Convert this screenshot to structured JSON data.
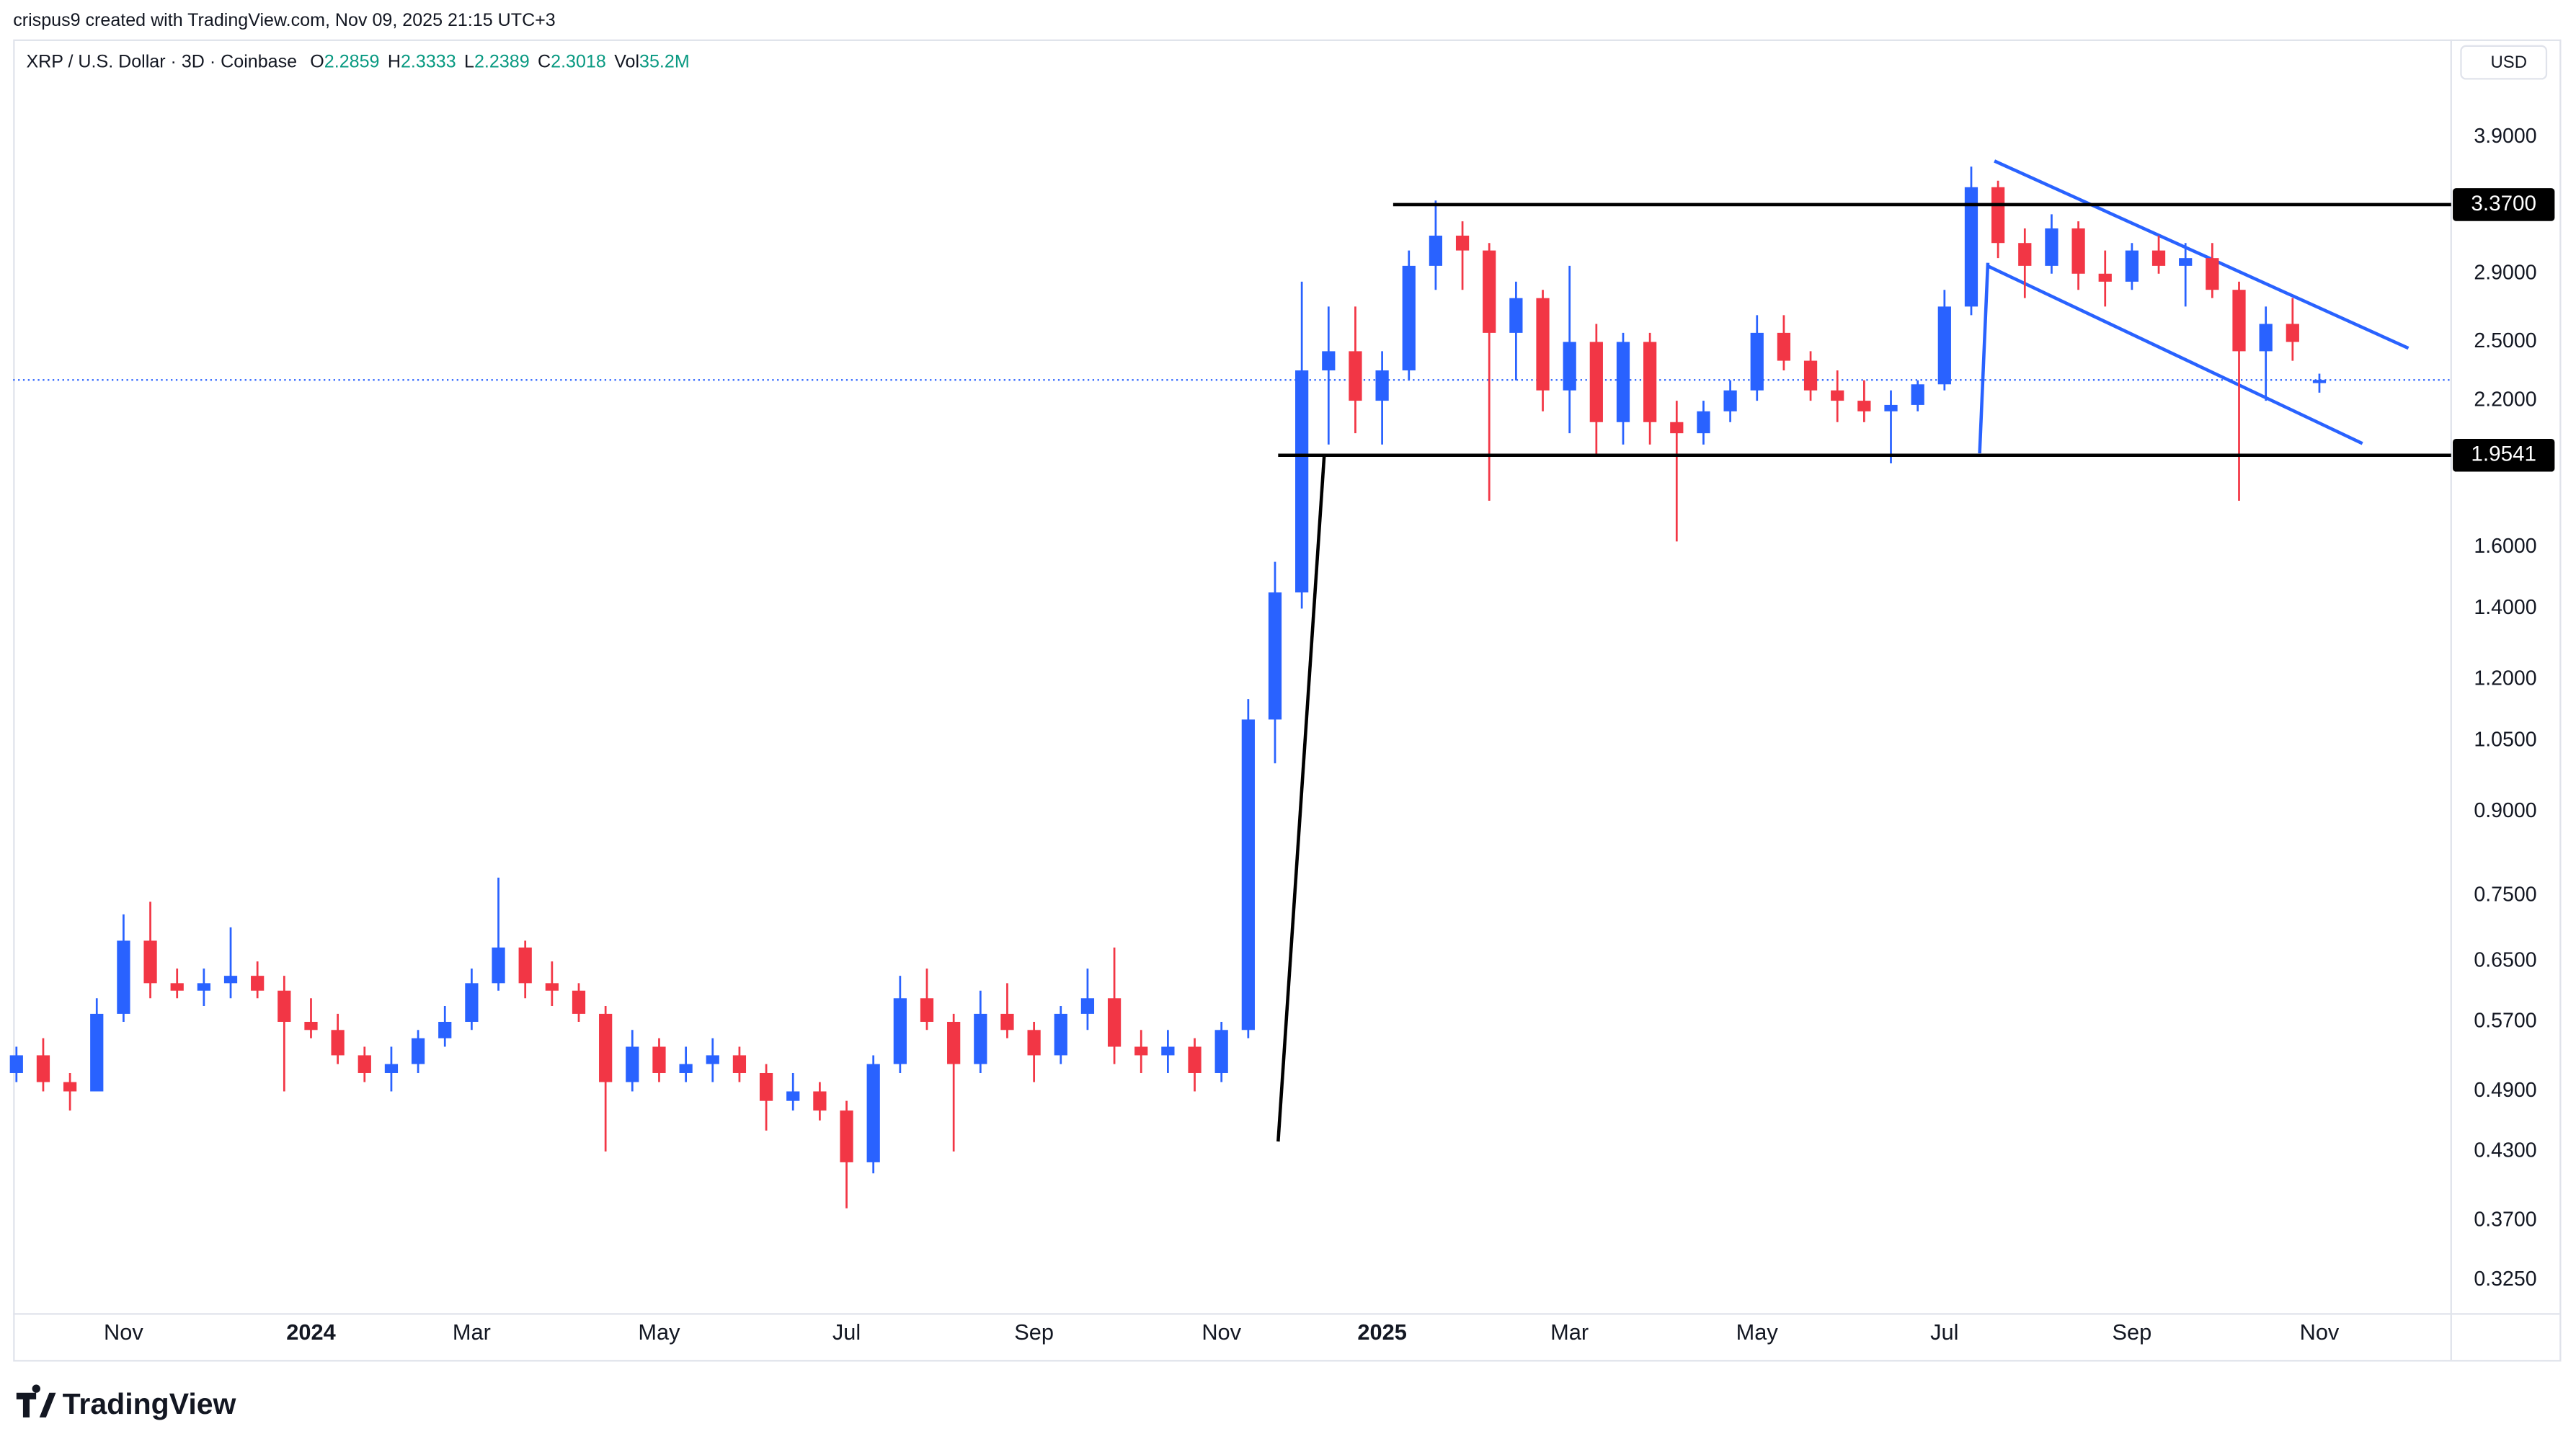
{
  "chart_data": {
    "type": "candlestick",
    "attribution": "crispus9 created with TradingView.com, Nov 09, 2025 21:15 UTC+3",
    "title": "XRP / U.S. Dollar · 3D · Coinbase",
    "ohlc_labels": [
      "O",
      "H",
      "L",
      "C",
      "Vol"
    ],
    "volume": "35.2M",
    "currency": "USD",
    "brand": "TradingView",
    "up_color": "#2962ff",
    "down_color": "#f23645",
    "log_scale": true,
    "grid": false,
    "categories": [
      null,
      null,
      null,
      null,
      "Nov",
      null,
      null,
      null,
      null,
      null,
      null,
      "2024",
      null,
      null,
      null,
      null,
      null,
      "Mar",
      null,
      null,
      null,
      null,
      null,
      null,
      "May",
      null,
      null,
      null,
      null,
      null,
      null,
      "Jul",
      null,
      null,
      null,
      null,
      null,
      null,
      "Sep",
      null,
      null,
      null,
      null,
      null,
      null,
      "Nov",
      null,
      null,
      null,
      null,
      null,
      "2025",
      null,
      null,
      null,
      null,
      null,
      null,
      "Mar",
      null,
      null,
      null,
      null,
      null,
      null,
      "May",
      null,
      null,
      null,
      null,
      null,
      null,
      "Jul",
      null,
      null,
      null,
      null,
      null,
      null,
      "Sep",
      null,
      null,
      null,
      null,
      null,
      null,
      "Nov"
    ],
    "open": [
      0.51,
      0.53,
      0.5,
      0.49,
      0.58,
      0.68,
      0.62,
      0.61,
      0.62,
      0.63,
      0.61,
      0.57,
      0.56,
      0.53,
      0.51,
      0.52,
      0.55,
      0.57,
      0.62,
      0.67,
      0.62,
      0.61,
      0.58,
      0.5,
      0.54,
      0.51,
      0.52,
      0.53,
      0.51,
      0.48,
      0.49,
      0.47,
      0.42,
      0.52,
      0.6,
      0.57,
      0.52,
      0.58,
      0.56,
      0.53,
      0.58,
      0.6,
      0.54,
      0.53,
      0.54,
      0.51,
      0.56,
      1.1,
      1.45,
      2.35,
      2.45,
      2.2,
      2.35,
      2.95,
      3.15,
      3.05,
      2.55,
      2.75,
      2.25,
      2.5,
      2.1,
      2.5,
      2.1,
      2.05,
      2.15,
      2.25,
      2.55,
      2.4,
      2.25,
      2.2,
      2.15,
      2.18,
      2.28,
      2.7,
      3.5,
      3.1,
      2.95,
      3.2,
      2.9,
      2.85,
      3.05,
      2.95,
      3.0,
      2.8,
      2.45,
      2.6,
      2.2859
    ],
    "high": [
      0.54,
      0.55,
      0.51,
      0.6,
      0.72,
      0.74,
      0.64,
      0.64,
      0.7,
      0.65,
      0.63,
      0.6,
      0.58,
      0.54,
      0.54,
      0.56,
      0.59,
      0.64,
      0.78,
      0.68,
      0.65,
      0.62,
      0.59,
      0.56,
      0.55,
      0.54,
      0.55,
      0.54,
      0.52,
      0.51,
      0.5,
      0.48,
      0.53,
      0.63,
      0.64,
      0.58,
      0.61,
      0.62,
      0.57,
      0.59,
      0.64,
      0.67,
      0.56,
      0.56,
      0.55,
      0.57,
      1.15,
      1.55,
      2.85,
      2.7,
      2.7,
      2.45,
      3.05,
      3.4,
      3.25,
      3.1,
      2.85,
      2.8,
      2.95,
      2.6,
      2.55,
      2.55,
      2.2,
      2.2,
      2.3,
      2.65,
      2.65,
      2.45,
      2.35,
      2.3,
      2.25,
      2.3,
      2.8,
      3.66,
      3.55,
      3.2,
      3.3,
      3.25,
      3.05,
      3.1,
      3.15,
      3.1,
      3.1,
      2.85,
      2.7,
      2.75,
      2.3333
    ],
    "low": [
      0.5,
      0.49,
      0.47,
      0.49,
      0.57,
      0.6,
      0.6,
      0.59,
      0.6,
      0.6,
      0.49,
      0.55,
      0.52,
      0.5,
      0.49,
      0.51,
      0.54,
      0.56,
      0.61,
      0.6,
      0.59,
      0.57,
      0.43,
      0.49,
      0.5,
      0.5,
      0.5,
      0.5,
      0.45,
      0.47,
      0.46,
      0.38,
      0.41,
      0.51,
      0.56,
      0.43,
      0.51,
      0.55,
      0.5,
      0.52,
      0.56,
      0.52,
      0.51,
      0.51,
      0.49,
      0.5,
      0.55,
      1.0,
      1.4,
      2.0,
      2.05,
      2.0,
      2.3,
      2.8,
      2.8,
      1.77,
      2.3,
      2.15,
      2.05,
      1.95,
      2.0,
      2.0,
      1.62,
      2.0,
      2.1,
      2.2,
      2.35,
      2.2,
      2.1,
      2.1,
      1.92,
      2.15,
      2.25,
      2.65,
      3.0,
      2.75,
      2.9,
      2.8,
      2.7,
      2.8,
      2.9,
      2.7,
      2.75,
      1.77,
      2.2,
      2.4,
      2.2389
    ],
    "close": [
      0.53,
      0.5,
      0.49,
      0.58,
      0.68,
      0.62,
      0.61,
      0.62,
      0.63,
      0.61,
      0.57,
      0.56,
      0.53,
      0.51,
      0.52,
      0.55,
      0.57,
      0.62,
      0.67,
      0.62,
      0.61,
      0.58,
      0.5,
      0.54,
      0.51,
      0.52,
      0.53,
      0.51,
      0.48,
      0.49,
      0.47,
      0.42,
      0.52,
      0.6,
      0.57,
      0.52,
      0.58,
      0.56,
      0.53,
      0.58,
      0.6,
      0.54,
      0.53,
      0.54,
      0.51,
      0.56,
      1.1,
      1.45,
      2.35,
      2.45,
      2.2,
      2.35,
      2.95,
      3.15,
      3.05,
      2.55,
      2.75,
      2.25,
      2.5,
      2.1,
      2.5,
      2.1,
      2.05,
      2.15,
      2.25,
      2.55,
      2.4,
      2.25,
      2.2,
      2.15,
      2.18,
      2.28,
      2.7,
      3.5,
      3.1,
      2.95,
      3.2,
      2.9,
      2.85,
      3.05,
      2.95,
      3.0,
      2.8,
      2.45,
      2.6,
      2.5,
      2.3018
    ],
    "ylim": [
      0.302,
      4.43
    ],
    "yticks": [
      {
        "value": 0.325,
        "label": "0.3250"
      },
      {
        "value": 0.37,
        "label": "0.3700"
      },
      {
        "value": 0.43,
        "label": "0.4300"
      },
      {
        "value": 0.49,
        "label": "0.4900"
      },
      {
        "value": 0.57,
        "label": "0.5700"
      },
      {
        "value": 0.65,
        "label": "0.6500"
      },
      {
        "value": 0.75,
        "label": "0.7500"
      },
      {
        "value": 0.9,
        "label": "0.9000"
      },
      {
        "value": 1.05,
        "label": "1.0500"
      },
      {
        "value": 1.2,
        "label": "1.2000"
      },
      {
        "value": 1.4,
        "label": "1.4000"
      },
      {
        "value": 1.6,
        "label": "1.6000"
      },
      {
        "value": 2.2,
        "label": "2.2000"
      },
      {
        "value": 2.5,
        "label": "2.5000"
      },
      {
        "value": 2.9,
        "label": "2.9000"
      },
      {
        "value": 3.9,
        "label": "3.9000"
      }
    ],
    "levels": [
      {
        "value": 3.37,
        "label": "3.3700"
      },
      {
        "value": 1.9541,
        "label": "1.9541"
      }
    ]
  }
}
